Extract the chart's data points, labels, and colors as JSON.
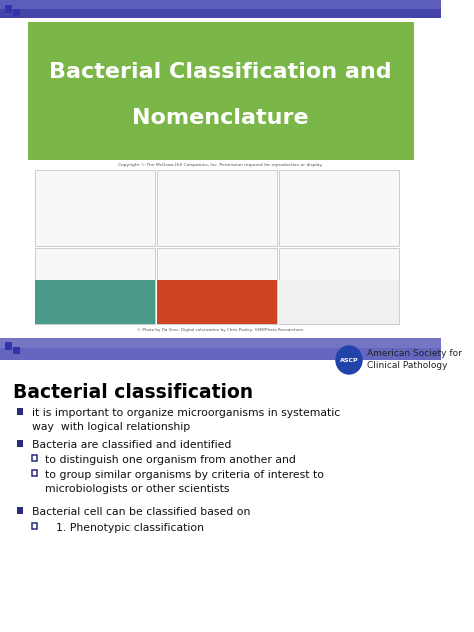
{
  "title_line1": "Bacterial Classification and",
  "title_line2": "Nomenclature",
  "title_bg_color": "#7ab648",
  "title_text_color": "#ffffff",
  "slide_bg_color": "#ffffff",
  "section_title": "Bacterial classification",
  "section_title_color": "#000000",
  "bullet_color": "#2a2a80",
  "bullet1": "it is important to organize microorganisms in systematic\nway  with logical relationship",
  "bullet2": "Bacteria are classified and identified",
  "sub_bullet2a": "to distinguish one organism from another and",
  "sub_bullet2b": "to group similar organisms by criteria of interest to\nmicrobiologists or other scientists",
  "bullet3": "Bacterial cell can be classified based on",
  "sub_bullet3a": "1. Phenotypic classification",
  "ascp_text1": "American Society for",
  "ascp_text2": "Clinical Pathology",
  "image_placeholder_color": "#f8f8f8",
  "image_border_color": "#bbbbbb",
  "top_bar_color1": "#4444aa",
  "top_bar_color2": "#7777cc",
  "sep_bar_color1": "#5555bb",
  "sep_bar_color2": "#8888cc",
  "photo_colors": [
    "#4a9a8a",
    "#cc4422",
    "#f0f0f0"
  ]
}
